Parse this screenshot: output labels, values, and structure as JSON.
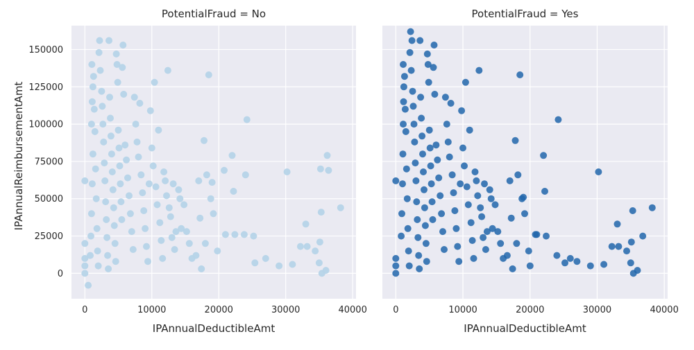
{
  "chart_data": {
    "type": "scatter",
    "xlabel": "IPAnnualDeductibleAmt",
    "ylabel": "IPAnnualReimbursementAmt",
    "xlim": [
      -2000,
      40500
    ],
    "ylim": [
      -17000,
      166000
    ],
    "x_ticks": [
      "0",
      "10000",
      "20000",
      "30000",
      "40000"
    ],
    "y_ticks": [
      "0",
      "25000",
      "50000",
      "75000",
      "100000",
      "125000",
      "150000"
    ],
    "x_tick_values": [
      0,
      10000,
      20000,
      30000,
      40000
    ],
    "y_tick_values": [
      0,
      25000,
      50000,
      75000,
      100000,
      125000,
      150000
    ],
    "grid": true,
    "panels": [
      {
        "title": "PotentialFraud = No",
        "color": "#b6d4e8",
        "points": [
          [
            0,
            0
          ],
          [
            0,
            20000
          ],
          [
            0,
            62000
          ],
          [
            0,
            5000
          ],
          [
            0,
            10000
          ],
          [
            500,
            -8000
          ],
          [
            800,
            12000
          ],
          [
            900,
            25000
          ],
          [
            1000,
            40000
          ],
          [
            1100,
            60000
          ],
          [
            1200,
            80000
          ],
          [
            1000,
            100000
          ],
          [
            1100,
            115000
          ],
          [
            1200,
            125000
          ],
          [
            1050,
            140000
          ],
          [
            1300,
            132000
          ],
          [
            1400,
            110000
          ],
          [
            1500,
            95000
          ],
          [
            1600,
            70000
          ],
          [
            1700,
            50000
          ],
          [
            1800,
            30000
          ],
          [
            1900,
            15000
          ],
          [
            2000,
            5000
          ],
          [
            2100,
            148000
          ],
          [
            2200,
            156000
          ],
          [
            2300,
            136000
          ],
          [
            2500,
            122000
          ],
          [
            2600,
            112000
          ],
          [
            2700,
            100000
          ],
          [
            2800,
            88000
          ],
          [
            2900,
            74000
          ],
          [
            3000,
            62000
          ],
          [
            3100,
            48000
          ],
          [
            3200,
            36000
          ],
          [
            3300,
            24000
          ],
          [
            3400,
            12000
          ],
          [
            3500,
            3000
          ],
          [
            3600,
            156000
          ],
          [
            3700,
            118000
          ],
          [
            3800,
            104000
          ],
          [
            3900,
            92000
          ],
          [
            4000,
            80000
          ],
          [
            4100,
            68000
          ],
          [
            4200,
            56000
          ],
          [
            4300,
            44000
          ],
          [
            4400,
            32000
          ],
          [
            4500,
            20000
          ],
          [
            4600,
            8000
          ],
          [
            4700,
            147000
          ],
          [
            4800,
            140000
          ],
          [
            4900,
            128000
          ],
          [
            5000,
            96000
          ],
          [
            5100,
            84000
          ],
          [
            5200,
            72000
          ],
          [
            5300,
            60000
          ],
          [
            5400,
            48000
          ],
          [
            5500,
            36000
          ],
          [
            5600,
            138000
          ],
          [
            5700,
            153000
          ],
          [
            5800,
            120000
          ],
          [
            6000,
            86000
          ],
          [
            6200,
            76000
          ],
          [
            6400,
            64000
          ],
          [
            6600,
            52000
          ],
          [
            6800,
            40000
          ],
          [
            7000,
            28000
          ],
          [
            7200,
            16000
          ],
          [
            7400,
            118000
          ],
          [
            7600,
            100000
          ],
          [
            7800,
            88000
          ],
          [
            8000,
            78000
          ],
          [
            8200,
            114000
          ],
          [
            8400,
            66000
          ],
          [
            8600,
            54000
          ],
          [
            8800,
            42000
          ],
          [
            9000,
            30000
          ],
          [
            9200,
            18000
          ],
          [
            9400,
            8000
          ],
          [
            9600,
            60000
          ],
          [
            9800,
            109000
          ],
          [
            10000,
            84000
          ],
          [
            10200,
            72000
          ],
          [
            10400,
            128000
          ],
          [
            10600,
            58000
          ],
          [
            10800,
            46000
          ],
          [
            11000,
            96000
          ],
          [
            11200,
            34000
          ],
          [
            11400,
            22000
          ],
          [
            11600,
            10000
          ],
          [
            11800,
            68000
          ],
          [
            12000,
            62000
          ],
          [
            12200,
            52000
          ],
          [
            12400,
            136000
          ],
          [
            12600,
            44000
          ],
          [
            12800,
            38000
          ],
          [
            13000,
            24000
          ],
          [
            13200,
            60000
          ],
          [
            13400,
            16000
          ],
          [
            13600,
            28000
          ],
          [
            14000,
            56000
          ],
          [
            14200,
            50000
          ],
          [
            14400,
            30000
          ],
          [
            14800,
            46000
          ],
          [
            15200,
            28000
          ],
          [
            15600,
            20000
          ],
          [
            16000,
            10000
          ],
          [
            16600,
            12000
          ],
          [
            17000,
            62000
          ],
          [
            17200,
            37000
          ],
          [
            17400,
            3000
          ],
          [
            17800,
            89000
          ],
          [
            18000,
            20000
          ],
          [
            18200,
            66000
          ],
          [
            18500,
            133000
          ],
          [
            18800,
            50000
          ],
          [
            19000,
            61000
          ],
          [
            19200,
            40000
          ],
          [
            19800,
            15000
          ],
          [
            20800,
            69000
          ],
          [
            21000,
            26000
          ],
          [
            22000,
            79000
          ],
          [
            22200,
            55000
          ],
          [
            22400,
            26000
          ],
          [
            23800,
            26000
          ],
          [
            24200,
            103000
          ],
          [
            24000,
            66000
          ],
          [
            25200,
            25000
          ],
          [
            25400,
            7000
          ],
          [
            27000,
            10000
          ],
          [
            29000,
            5000
          ],
          [
            30200,
            68000
          ],
          [
            31000,
            6000
          ],
          [
            32200,
            18000
          ],
          [
            33000,
            33000
          ],
          [
            33200,
            18000
          ],
          [
            34400,
            15000
          ],
          [
            35000,
            7000
          ],
          [
            35100,
            21000
          ],
          [
            35200,
            70000
          ],
          [
            35300,
            41000
          ],
          [
            35400,
            0
          ],
          [
            36000,
            2000
          ],
          [
            36200,
            79000
          ],
          [
            36400,
            69000
          ],
          [
            38200,
            44000
          ]
        ]
      },
      {
        "title": "PotentialFraud = Yes",
        "color": "#2166ac",
        "points": [
          [
            0,
            0
          ],
          [
            0,
            5000
          ],
          [
            0,
            10000
          ],
          [
            0,
            62000
          ],
          [
            800,
            25000
          ],
          [
            900,
            40000
          ],
          [
            1000,
            60000
          ],
          [
            1050,
            80000
          ],
          [
            1100,
            100000
          ],
          [
            1150,
            115000
          ],
          [
            1200,
            125000
          ],
          [
            1100,
            140000
          ],
          [
            1300,
            132000
          ],
          [
            1400,
            110000
          ],
          [
            1500,
            95000
          ],
          [
            1600,
            70000
          ],
          [
            1700,
            50000
          ],
          [
            1800,
            30000
          ],
          [
            1900,
            15000
          ],
          [
            2000,
            5000
          ],
          [
            2100,
            148000
          ],
          [
            2200,
            162000
          ],
          [
            2300,
            136000
          ],
          [
            2400,
            156000
          ],
          [
            2500,
            122000
          ],
          [
            2600,
            112000
          ],
          [
            2700,
            100000
          ],
          [
            2800,
            88000
          ],
          [
            2900,
            74000
          ],
          [
            3000,
            62000
          ],
          [
            3100,
            48000
          ],
          [
            3200,
            36000
          ],
          [
            3300,
            24000
          ],
          [
            3400,
            12000
          ],
          [
            3500,
            3000
          ],
          [
            3600,
            156000
          ],
          [
            3700,
            118000
          ],
          [
            3800,
            104000
          ],
          [
            3900,
            92000
          ],
          [
            4000,
            80000
          ],
          [
            4100,
            68000
          ],
          [
            4200,
            56000
          ],
          [
            4300,
            44000
          ],
          [
            4400,
            32000
          ],
          [
            4500,
            20000
          ],
          [
            4600,
            8000
          ],
          [
            4700,
            147000
          ],
          [
            4800,
            140000
          ],
          [
            4900,
            128000
          ],
          [
            5000,
            96000
          ],
          [
            5100,
            84000
          ],
          [
            5200,
            72000
          ],
          [
            5300,
            60000
          ],
          [
            5400,
            48000
          ],
          [
            5500,
            36000
          ],
          [
            5600,
            138000
          ],
          [
            5700,
            153000
          ],
          [
            5800,
            120000
          ],
          [
            6000,
            86000
          ],
          [
            6200,
            76000
          ],
          [
            6400,
            64000
          ],
          [
            6600,
            52000
          ],
          [
            6800,
            40000
          ],
          [
            7000,
            28000
          ],
          [
            7200,
            16000
          ],
          [
            7400,
            118000
          ],
          [
            7600,
            100000
          ],
          [
            7800,
            88000
          ],
          [
            8000,
            78000
          ],
          [
            8200,
            114000
          ],
          [
            8400,
            66000
          ],
          [
            8600,
            54000
          ],
          [
            8800,
            42000
          ],
          [
            9000,
            30000
          ],
          [
            9200,
            18000
          ],
          [
            9400,
            8000
          ],
          [
            9600,
            60000
          ],
          [
            9800,
            109000
          ],
          [
            10000,
            84000
          ],
          [
            10200,
            72000
          ],
          [
            10400,
            128000
          ],
          [
            10600,
            58000
          ],
          [
            10800,
            46000
          ],
          [
            11000,
            96000
          ],
          [
            11200,
            34000
          ],
          [
            11400,
            22000
          ],
          [
            11600,
            10000
          ],
          [
            11800,
            68000
          ],
          [
            12000,
            62000
          ],
          [
            12200,
            52000
          ],
          [
            12400,
            136000
          ],
          [
            12600,
            44000
          ],
          [
            12800,
            38000
          ],
          [
            13000,
            24000
          ],
          [
            13200,
            60000
          ],
          [
            13400,
            16000
          ],
          [
            13600,
            28000
          ],
          [
            14000,
            56000
          ],
          [
            14200,
            50000
          ],
          [
            14400,
            30000
          ],
          [
            14800,
            46000
          ],
          [
            15200,
            28000
          ],
          [
            15600,
            20000
          ],
          [
            16000,
            10000
          ],
          [
            16600,
            12000
          ],
          [
            17000,
            62000
          ],
          [
            17200,
            37000
          ],
          [
            17400,
            3000
          ],
          [
            17800,
            89000
          ],
          [
            18000,
            20000
          ],
          [
            18200,
            66000
          ],
          [
            18500,
            133000
          ],
          [
            18800,
            50000
          ],
          [
            19000,
            51000
          ],
          [
            19200,
            40000
          ],
          [
            19800,
            15000
          ],
          [
            20000,
            5000
          ],
          [
            20800,
            26000
          ],
          [
            21000,
            26000
          ],
          [
            22000,
            79000
          ],
          [
            22200,
            55000
          ],
          [
            22400,
            25000
          ],
          [
            24200,
            103000
          ],
          [
            24000,
            12000
          ],
          [
            25200,
            7000
          ],
          [
            26000,
            10000
          ],
          [
            27000,
            8000
          ],
          [
            29000,
            5000
          ],
          [
            30200,
            68000
          ],
          [
            31000,
            6000
          ],
          [
            32200,
            18000
          ],
          [
            33000,
            33000
          ],
          [
            33200,
            18000
          ],
          [
            34400,
            15000
          ],
          [
            35000,
            7000
          ],
          [
            35100,
            21000
          ],
          [
            35300,
            42000
          ],
          [
            35400,
            0
          ],
          [
            36000,
            2000
          ],
          [
            36800,
            25000
          ],
          [
            38200,
            44000
          ]
        ]
      }
    ]
  }
}
